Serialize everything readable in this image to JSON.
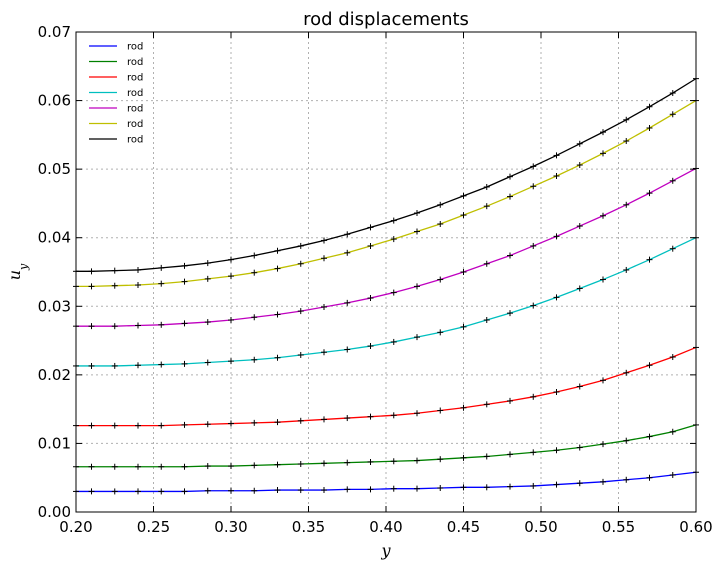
{
  "chart_data": {
    "type": "line",
    "title": "rod displacements",
    "xlabel": "y",
    "ylabel": "u_y",
    "xlim": [
      0.2,
      0.6
    ],
    "ylim": [
      0.0,
      0.07
    ],
    "xticks": [
      "0.20",
      "0.25",
      "0.30",
      "0.35",
      "0.40",
      "0.45",
      "0.50",
      "0.55",
      "0.60"
    ],
    "yticks": [
      "0.00",
      "0.01",
      "0.02",
      "0.03",
      "0.04",
      "0.05",
      "0.06",
      "0.07"
    ],
    "grid": true,
    "legend_position": "top-left",
    "marker": "+",
    "x": [
      0.2,
      0.21,
      0.225,
      0.24,
      0.255,
      0.27,
      0.285,
      0.3,
      0.315,
      0.33,
      0.345,
      0.36,
      0.375,
      0.39,
      0.405,
      0.42,
      0.435,
      0.45,
      0.465,
      0.48,
      0.495,
      0.51,
      0.525,
      0.54,
      0.555,
      0.57,
      0.585,
      0.6
    ],
    "series": [
      {
        "name": "rod",
        "color": "#0000ff",
        "values": [
          0.003,
          0.003,
          0.003,
          0.003,
          0.003,
          0.003,
          0.0031,
          0.0031,
          0.0031,
          0.0032,
          0.0032,
          0.0032,
          0.0033,
          0.0033,
          0.0034,
          0.0034,
          0.0035,
          0.0036,
          0.0036,
          0.0037,
          0.0038,
          0.004,
          0.0042,
          0.0044,
          0.0047,
          0.005,
          0.0054,
          0.0058
        ]
      },
      {
        "name": "rod",
        "color": "#008000",
        "values": [
          0.0066,
          0.0066,
          0.0066,
          0.0066,
          0.0066,
          0.0066,
          0.0067,
          0.0067,
          0.0068,
          0.0069,
          0.007,
          0.0071,
          0.0072,
          0.0073,
          0.0074,
          0.0075,
          0.0077,
          0.0079,
          0.0081,
          0.0084,
          0.0087,
          0.009,
          0.0094,
          0.0099,
          0.0104,
          0.011,
          0.0117,
          0.0127
        ]
      },
      {
        "name": "rod",
        "color": "#ff0000",
        "values": [
          0.0126,
          0.0126,
          0.0126,
          0.0126,
          0.0126,
          0.0127,
          0.0128,
          0.0129,
          0.013,
          0.0131,
          0.0133,
          0.0135,
          0.0137,
          0.0139,
          0.0141,
          0.0144,
          0.0148,
          0.0152,
          0.0157,
          0.0162,
          0.0168,
          0.0175,
          0.0183,
          0.0192,
          0.0203,
          0.0214,
          0.0226,
          0.024
        ]
      },
      {
        "name": "rod",
        "color": "#00bfbf",
        "values": [
          0.0213,
          0.0213,
          0.0213,
          0.0214,
          0.0215,
          0.0216,
          0.0218,
          0.022,
          0.0222,
          0.0225,
          0.0229,
          0.0233,
          0.0237,
          0.0242,
          0.0248,
          0.0255,
          0.0262,
          0.027,
          0.028,
          0.029,
          0.0301,
          0.0313,
          0.0326,
          0.0339,
          0.0353,
          0.0368,
          0.0384,
          0.04
        ]
      },
      {
        "name": "rod",
        "color": "#bf00bf",
        "values": [
          0.0271,
          0.0271,
          0.0271,
          0.0272,
          0.0273,
          0.0275,
          0.0277,
          0.028,
          0.0284,
          0.0288,
          0.0293,
          0.0299,
          0.0305,
          0.0312,
          0.032,
          0.0329,
          0.0339,
          0.035,
          0.0362,
          0.0374,
          0.0388,
          0.0402,
          0.0417,
          0.0432,
          0.0448,
          0.0465,
          0.0483,
          0.0501
        ]
      },
      {
        "name": "rod",
        "color": "#bfbf00",
        "values": [
          0.0329,
          0.0329,
          0.033,
          0.0331,
          0.0333,
          0.0336,
          0.034,
          0.0344,
          0.0349,
          0.0355,
          0.0362,
          0.037,
          0.0378,
          0.0388,
          0.0398,
          0.0409,
          0.042,
          0.0433,
          0.0446,
          0.046,
          0.0475,
          0.049,
          0.0506,
          0.0523,
          0.0541,
          0.056,
          0.058,
          0.06
        ]
      },
      {
        "name": "rod",
        "color": "#000000",
        "values": [
          0.0351,
          0.0351,
          0.0352,
          0.0353,
          0.0356,
          0.0359,
          0.0363,
          0.0368,
          0.0374,
          0.0381,
          0.0388,
          0.0396,
          0.0405,
          0.0415,
          0.0425,
          0.0436,
          0.0448,
          0.0461,
          0.0474,
          0.0489,
          0.0504,
          0.052,
          0.0537,
          0.0554,
          0.0572,
          0.0591,
          0.0611,
          0.0632
        ]
      }
    ]
  }
}
